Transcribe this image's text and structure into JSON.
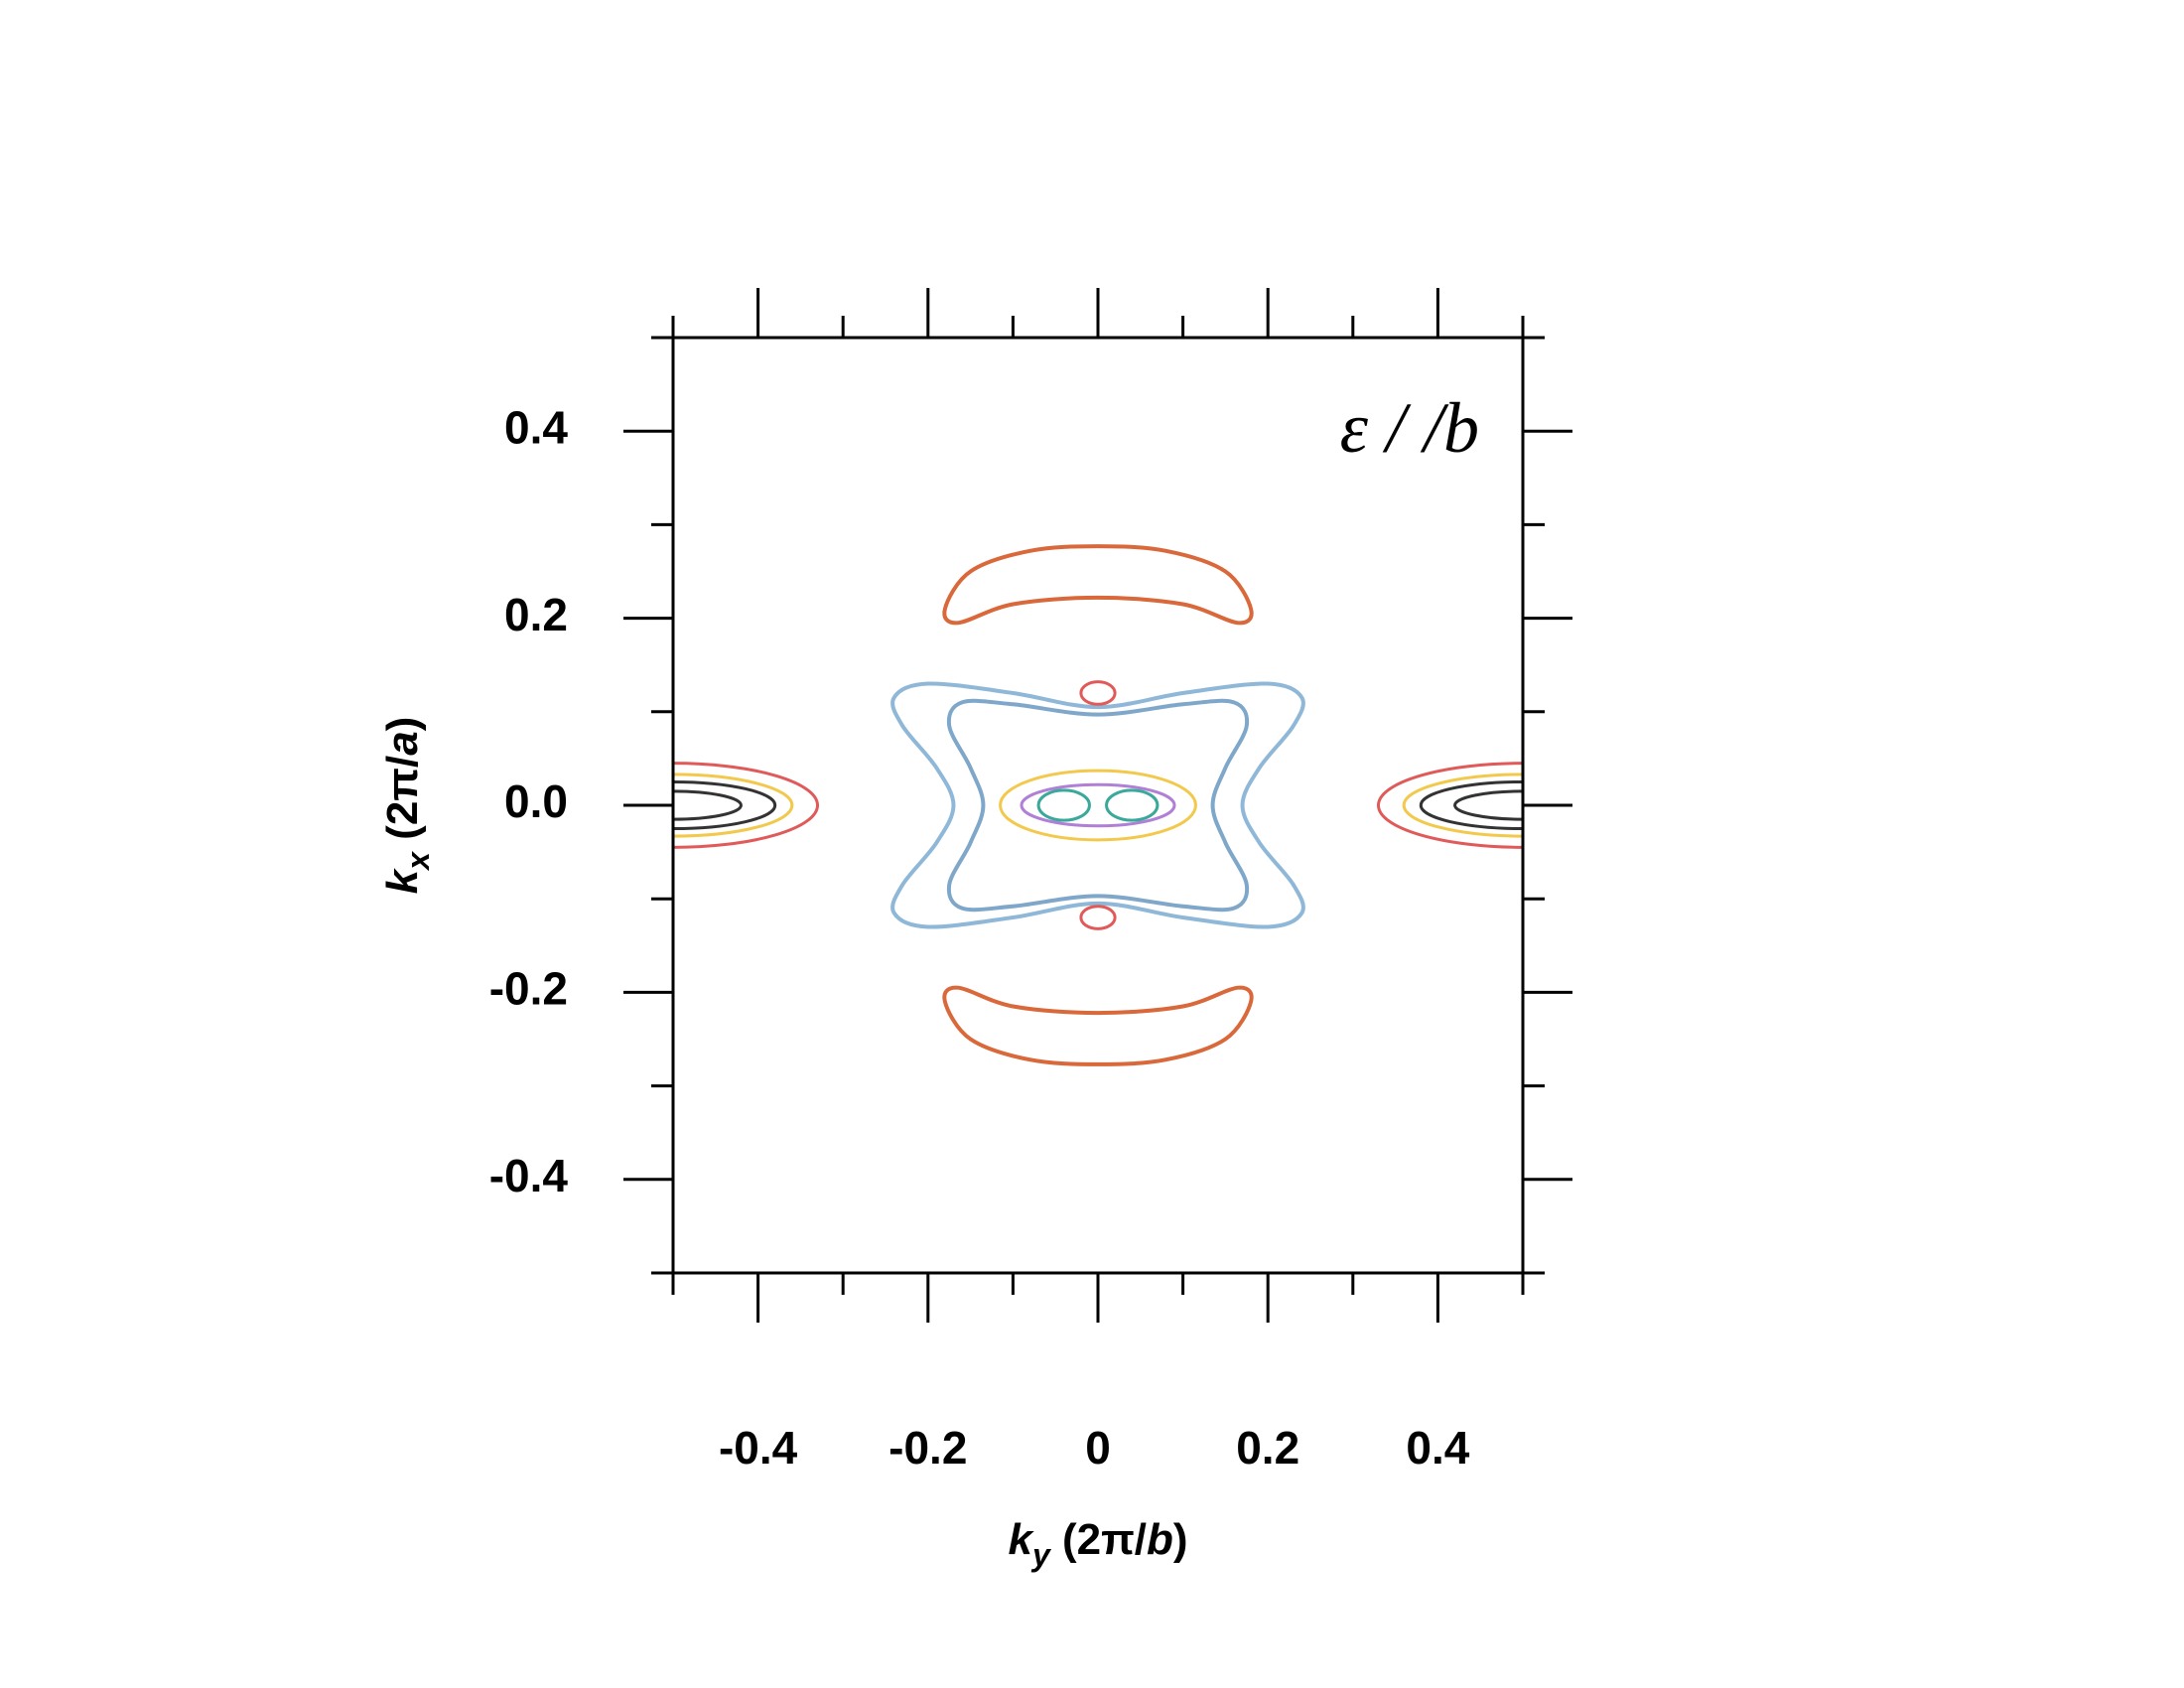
{
  "chart_data": {
    "type": "contour",
    "annotation": "ε / /b",
    "x_label": [
      "k",
      "y",
      " (2π/",
      "b",
      ")"
    ],
    "y_label": [
      "k",
      "x",
      " (2π/",
      "a",
      ")"
    ],
    "xlim": [
      -0.5,
      0.5
    ],
    "ylim": [
      -0.5,
      0.5
    ],
    "xticks": [
      -0.4,
      -0.2,
      0,
      0.2,
      0.4
    ],
    "yticks": [
      0.4,
      0.2,
      {
        "value": 0,
        "label": "0.0"
      },
      -0.2,
      -0.4
    ],
    "xminor_ticks": [
      -0.5,
      -0.3,
      -0.1,
      0.1,
      0.3,
      0.5
    ],
    "yminor_ticks": [
      0.5,
      0.3,
      0.1,
      -0.1,
      -0.3,
      -0.5
    ],
    "contours": [
      {
        "color": "#d9683a",
        "x": [
          -0.18,
          -0.15,
          -0.08,
          0,
          0.08,
          0.15,
          0.18,
          0.165,
          0.1,
          0,
          -0.1,
          -0.165
        ],
        "y": [
          0.21,
          0.25,
          0.272,
          0.277,
          0.272,
          0.25,
          0.21,
          0.195,
          0.215,
          0.222,
          0.215,
          0.195
        ]
      },
      {
        "color": "#d9683a",
        "x": [
          -0.18,
          -0.15,
          -0.08,
          0,
          0.08,
          0.15,
          0.18,
          0.165,
          0.1,
          0,
          -0.1,
          -0.165
        ],
        "y": [
          -0.21,
          -0.25,
          -0.272,
          -0.277,
          -0.272,
          -0.25,
          -0.21,
          -0.195,
          -0.215,
          -0.222,
          -0.215,
          -0.195
        ]
      },
      {
        "color": "#8fb8d8",
        "x": [
          0,
          0.1,
          0.2,
          0.24,
          0.23,
          0.19,
          0.17,
          0.19,
          0.23,
          0.24,
          0.2,
          0.1,
          0,
          -0.1,
          -0.2,
          -0.24,
          -0.23,
          -0.19,
          -0.17,
          -0.19,
          -0.23,
          -0.24,
          -0.2,
          -0.1
        ],
        "y": [
          0.105,
          0.12,
          0.13,
          0.115,
          0.085,
          0.04,
          0,
          -0.04,
          -0.085,
          -0.115,
          -0.13,
          -0.12,
          -0.105,
          -0.12,
          -0.13,
          -0.115,
          -0.085,
          -0.04,
          0,
          0.04,
          0.085,
          0.115,
          0.13,
          0.12
        ]
      },
      {
        "color": "#7fa7c9",
        "x": [
          0,
          0.1,
          0.16,
          0.175,
          0.15,
          0.135,
          0.15,
          0.175,
          0.16,
          0.1,
          0,
          -0.1,
          -0.16,
          -0.175,
          -0.15,
          -0.135,
          -0.15,
          -0.175,
          -0.16,
          -0.1
        ],
        "y": [
          0.097,
          0.108,
          0.11,
          0.085,
          0.04,
          0,
          -0.04,
          -0.085,
          -0.11,
          -0.108,
          -0.097,
          -0.108,
          -0.11,
          -0.085,
          -0.04,
          0,
          0.04,
          0.085,
          0.11,
          0.108
        ]
      }
    ],
    "ellipses": [
      {
        "color": "#f2c94c",
        "cx": 0,
        "cy": 0,
        "rx": 0.115,
        "ry": 0.037
      },
      {
        "color": "#b07fd6",
        "cx": 0,
        "cy": 0,
        "rx": 0.09,
        "ry": 0.022
      },
      {
        "color": "#3aa89a",
        "cx": -0.04,
        "cy": 0,
        "rx": 0.03,
        "ry": 0.016
      },
      {
        "color": "#3aa89a",
        "cx": 0.04,
        "cy": 0,
        "rx": 0.03,
        "ry": 0.016
      },
      {
        "color": "#e05a5a",
        "cx": 0,
        "cy": 0.12,
        "rx": 0.02,
        "ry": 0.012
      },
      {
        "color": "#e05a5a",
        "cx": 0,
        "cy": -0.12,
        "rx": 0.02,
        "ry": 0.012
      },
      {
        "color": "#e05a5a",
        "cx": -0.5,
        "cy": 0,
        "rx": 0.17,
        "ry": 0.045
      },
      {
        "color": "#f2c94c",
        "cx": -0.5,
        "cy": 0,
        "rx": 0.14,
        "ry": 0.033
      },
      {
        "color": "#333333",
        "cx": -0.5,
        "cy": 0,
        "rx": 0.12,
        "ry": 0.025
      },
      {
        "color": "#333333",
        "cx": -0.5,
        "cy": 0,
        "rx": 0.08,
        "ry": 0.015
      },
      {
        "color": "#e05a5a",
        "cx": 0.5,
        "cy": 0,
        "rx": 0.17,
        "ry": 0.045
      },
      {
        "color": "#f2c94c",
        "cx": 0.5,
        "cy": 0,
        "rx": 0.14,
        "ry": 0.033
      },
      {
        "color": "#333333",
        "cx": 0.5,
        "cy": 0,
        "rx": 0.12,
        "ry": 0.025
      },
      {
        "color": "#333333",
        "cx": 0.5,
        "cy": 0,
        "rx": 0.08,
        "ry": 0.015
      }
    ]
  }
}
